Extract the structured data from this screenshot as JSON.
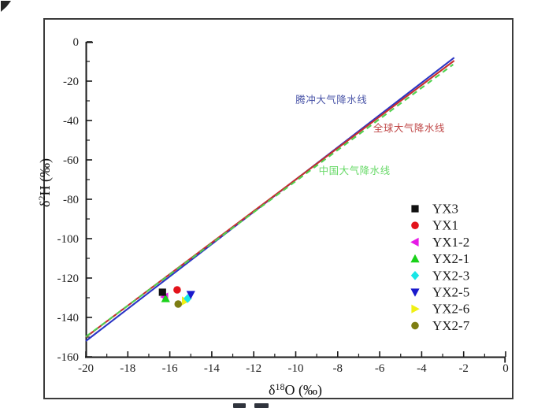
{
  "chart_data": {
    "type": "scatter",
    "title": "",
    "xlabel": {
      "pre": "δ",
      "sup": "18",
      "post": "O (‰)"
    },
    "ylabel": {
      "pre": "δ",
      "sup": "2",
      "post": "H (‰)"
    },
    "xlim": [
      -20,
      0
    ],
    "ylim": [
      -160,
      0
    ],
    "grid": false,
    "legend_position": "right-center",
    "x_major_ticks": [
      -20,
      -18,
      -16,
      -14,
      -12,
      -10,
      -8,
      -6,
      -4,
      -2,
      0
    ],
    "x_minor_ticks": [
      -19,
      -17,
      -15,
      -13,
      -11,
      -9,
      -7,
      -5,
      -3,
      -1
    ],
    "y_major_ticks": [
      0,
      -20,
      -40,
      -60,
      -80,
      -100,
      -120,
      -140,
      -160
    ],
    "y_minor_ticks": [
      -10,
      -30,
      -50,
      -70,
      -90,
      -110,
      -130,
      -150
    ],
    "lines": [
      {
        "name": "腾冲大气降水线",
        "color": "#2b35c4",
        "style": "solid",
        "slope": 8.2,
        "intercept": 12,
        "x_range": [
          -20,
          -2.45
        ]
      },
      {
        "name": "全球大气降水线",
        "color": "#c62f2f",
        "style": "solid",
        "slope": 8.0,
        "intercept": 10,
        "x_range": [
          -20,
          -2.45
        ]
      },
      {
        "name": "中国大气降水线",
        "color": "#4fd24f",
        "style": "dashed",
        "slope": 7.9,
        "intercept": 8.2,
        "x_range": [
          -20,
          -2.5
        ]
      }
    ],
    "annotations": [
      {
        "text": "腾冲大气降水线",
        "color": "#4a55a8",
        "x": -8.3,
        "y": -29.6
      },
      {
        "text": "全球大气降水线",
        "color": "#c04848",
        "x": -4.6,
        "y": -44.0
      },
      {
        "text": "中国大气降水线",
        "color": "#67d967",
        "x": -7.2,
        "y": -65.6
      }
    ],
    "series": [
      {
        "name": "YX3",
        "marker": "square",
        "color": "#111111",
        "points": [
          [
            -16.35,
            -127.2
          ]
        ]
      },
      {
        "name": "YX1",
        "marker": "circle",
        "color": "#e3131b",
        "points": [
          [
            -15.65,
            -126.0
          ]
        ]
      },
      {
        "name": "YX1-2",
        "marker": "triangle-left",
        "color": "#e619e6",
        "points": [
          [
            -16.25,
            -129.6
          ]
        ]
      },
      {
        "name": "YX2-1",
        "marker": "triangle-up",
        "color": "#19d119",
        "points": [
          [
            -16.2,
            -130.4
          ]
        ]
      },
      {
        "name": "YX2-3",
        "marker": "diamond",
        "color": "#19e6e6",
        "points": [
          [
            -15.15,
            -130.4
          ]
        ]
      },
      {
        "name": "YX2-5",
        "marker": "triangle-down",
        "color": "#1919cc",
        "points": [
          [
            -15.0,
            -128.4
          ]
        ]
      },
      {
        "name": "YX2-6",
        "marker": "triangle-right",
        "color": "#f0f013",
        "points": [
          [
            -15.25,
            -131.6
          ]
        ]
      },
      {
        "name": "YX2-7",
        "marker": "circle",
        "color": "#7d7d12",
        "points": [
          [
            -15.6,
            -133.2
          ]
        ]
      }
    ],
    "draw_order": [
      "YX1-2",
      "YX2-1",
      "YX3",
      "YX1",
      "YX2-6",
      "YX2-3",
      "YX2-5",
      "YX2-7"
    ]
  }
}
